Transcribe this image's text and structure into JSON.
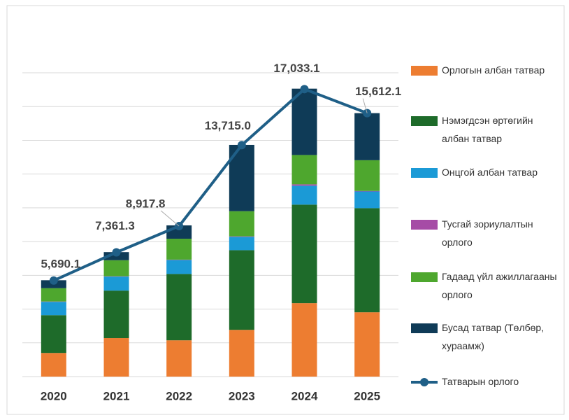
{
  "chart_data": {
    "type": "bar",
    "categories": [
      "2020",
      "2021",
      "2022",
      "2023",
      "2024",
      "2025"
    ],
    "ylim": [
      0,
      18000
    ],
    "yticks": [
      0,
      2000,
      4000,
      6000,
      8000,
      10000,
      12000,
      14000,
      16000,
      18000
    ],
    "grid": true,
    "stacked": true,
    "legend": "right",
    "series": [
      {
        "name": "Орлогын албан татвар",
        "color": "#ed7d31",
        "values": [
          1400,
          2280,
          2150,
          2770,
          4350,
          3810
        ]
      },
      {
        "name": "Нэмэгдсэн өртөгийн албан татвар",
        "color": "#1e6b2a",
        "values": [
          2240,
          2815,
          3930,
          4720,
          5840,
          6170
        ]
      },
      {
        "name": "Онцгой албан татвар",
        "color": "#1b9ad6",
        "values": [
          790,
          830,
          830,
          790,
          1120,
          990
        ]
      },
      {
        "name": "Тусгай зориулалтын орлого",
        "color": "#a64ca6",
        "values": [
          20,
          20,
          20,
          30,
          80,
          30
        ]
      },
      {
        "name": "Гадаад үйл ажиллагааны орлого",
        "color": "#4ea72e",
        "values": [
          790,
          950,
          1240,
          1490,
          1740,
          1820
        ]
      },
      {
        "name": "Бусад татвар (Төлбөр, хураамж)",
        "color": "#0f3b57",
        "values": [
          470,
          480,
          790,
          3930,
          3930,
          2790
        ]
      },
      {
        "name": "Татварын орлого",
        "type": "line",
        "color": "#1f5f87",
        "values": [
          5690.1,
          7361.3,
          8917.8,
          13715.0,
          17033.1,
          15612.1
        ],
        "value_labels": [
          "5,690.1",
          "7,361.3",
          "8,917.8",
          "13,715.0",
          "17,033.1",
          "15,612.1"
        ]
      }
    ]
  }
}
